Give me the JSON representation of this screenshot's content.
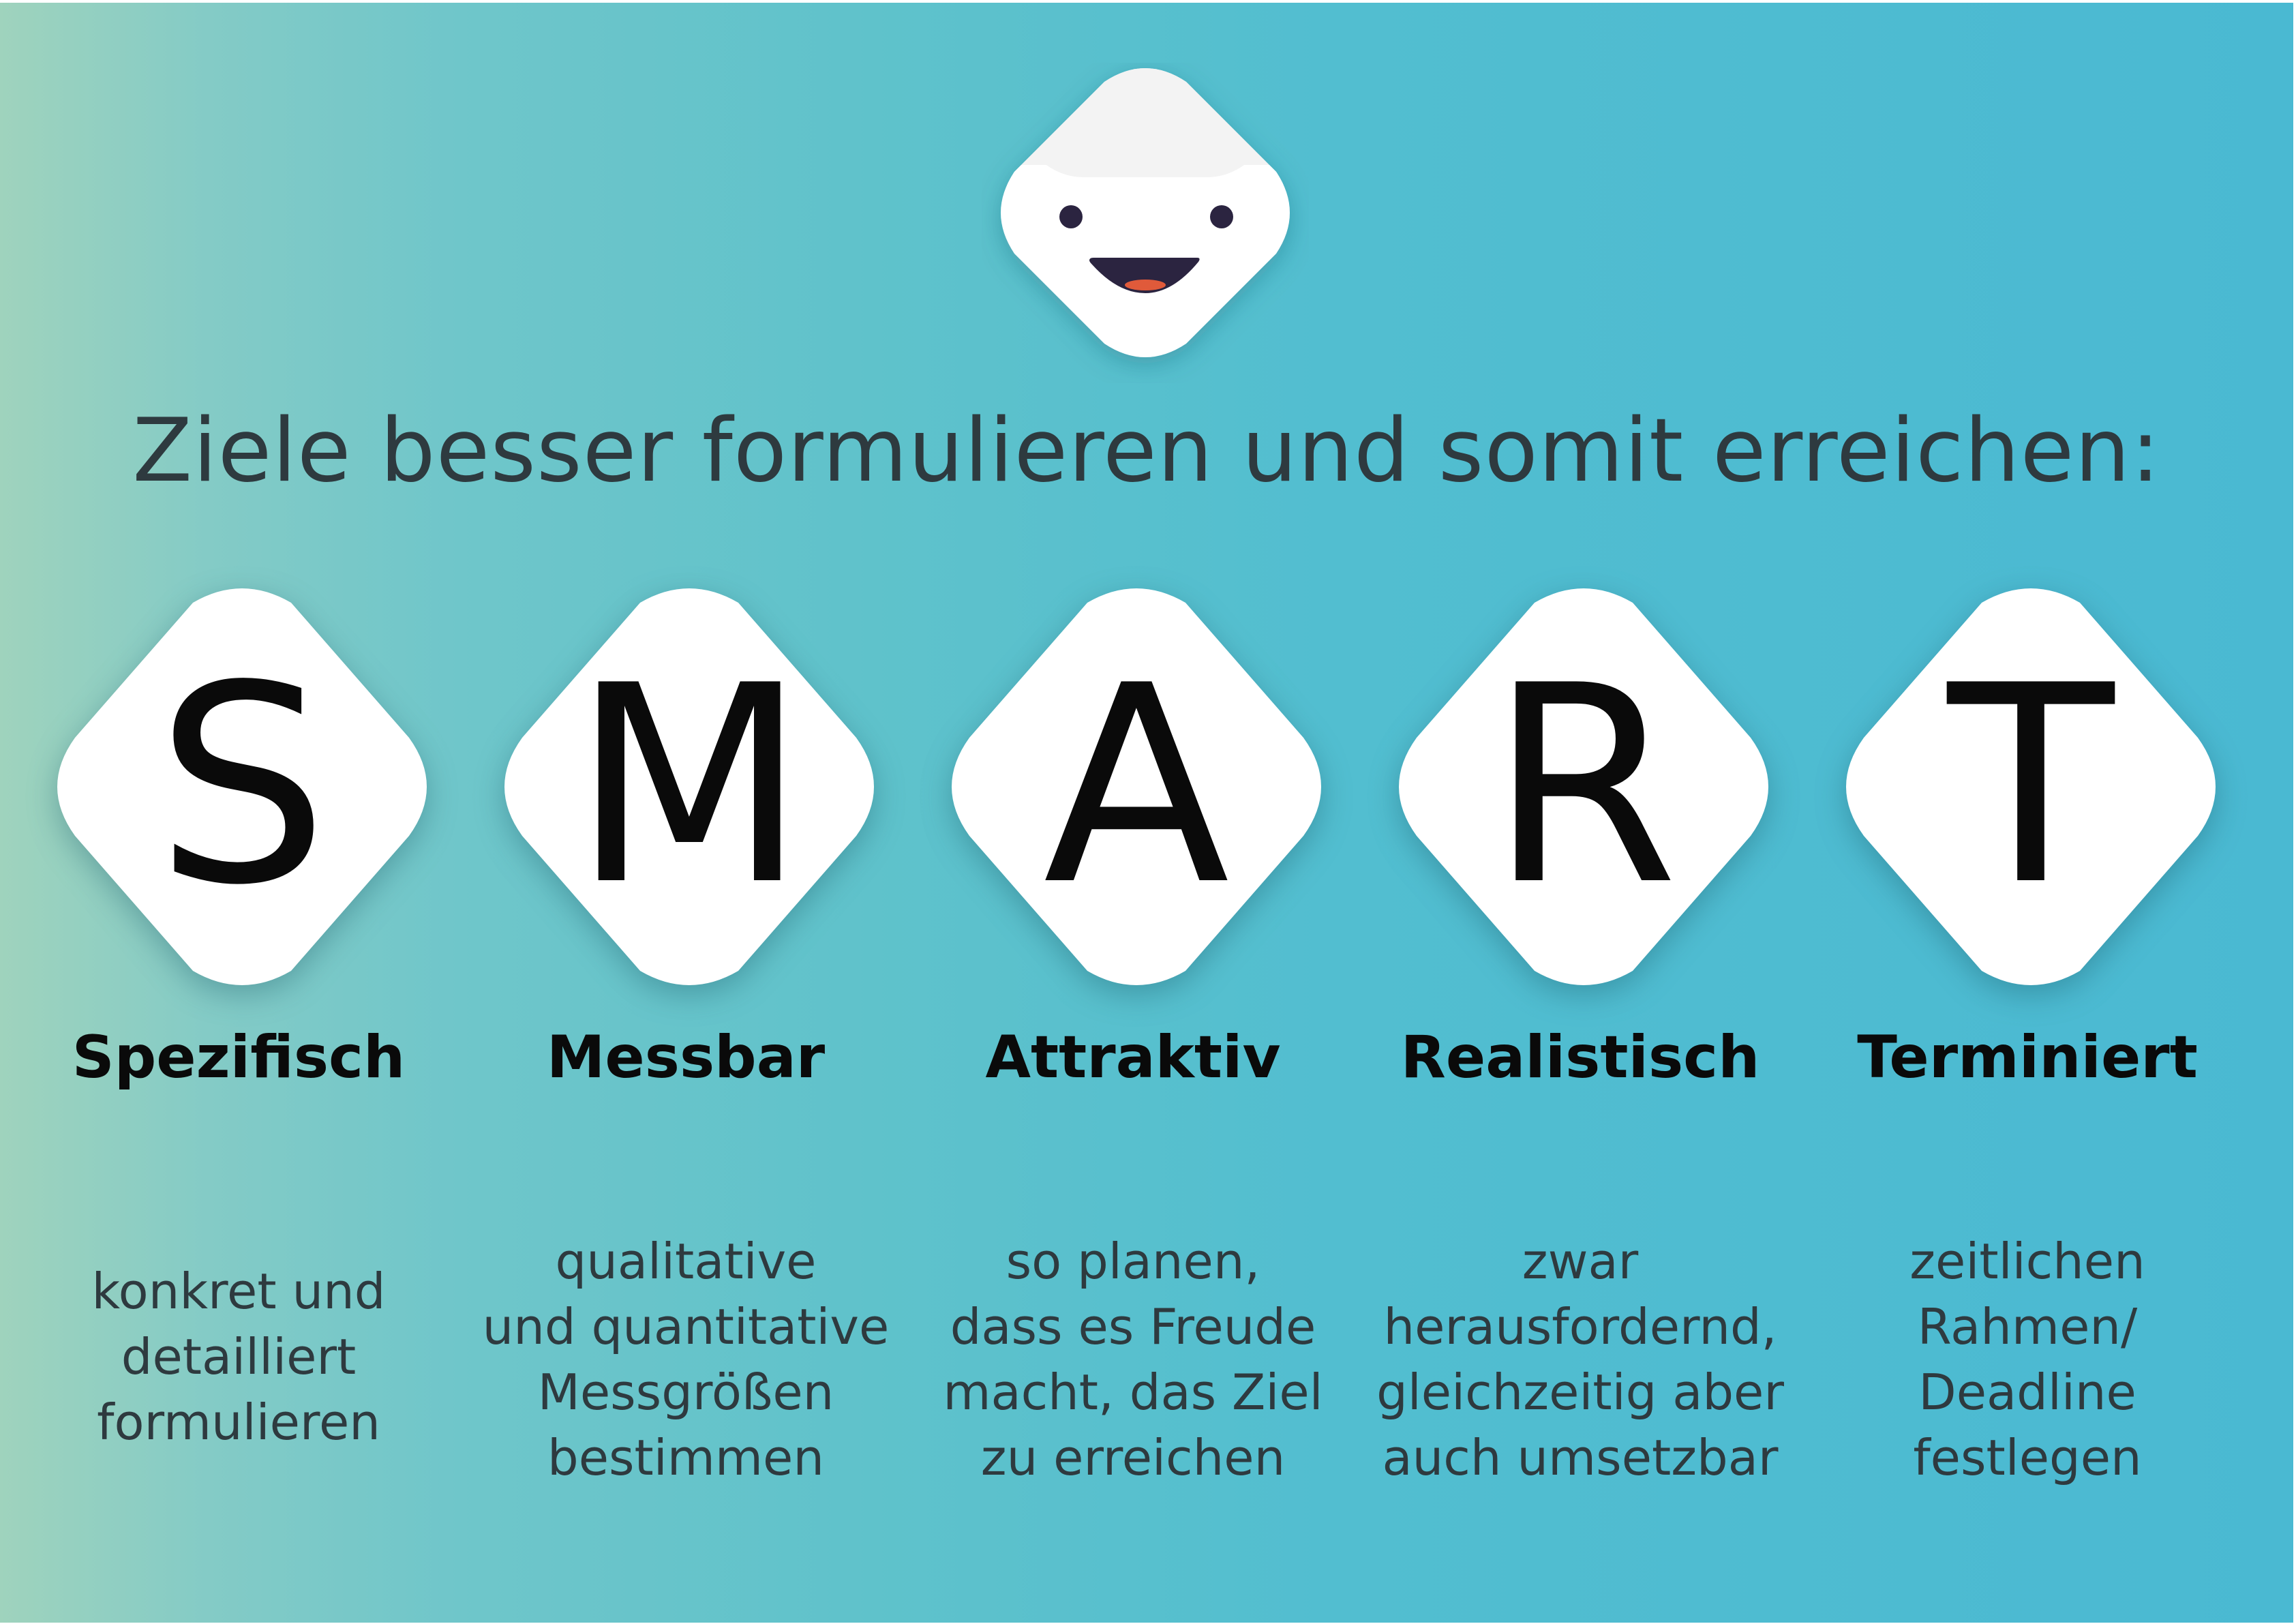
{
  "headline": "Ziele besser formulieren und somit erreichen:",
  "colors": {
    "gradient_start": "#9fd3bd",
    "gradient_end": "#4ab9d2",
    "tile": "#ffffff",
    "text_dark": "#2e3a3f",
    "letter": "#0a0a0a",
    "mascot_eye": "#2b2440",
    "mascot_mouth": "#2b2440",
    "mascot_tongue": "#e05a3a"
  },
  "mascot": {
    "icon": "smiling-face-mascot-icon"
  },
  "items": [
    {
      "letter": "S",
      "word": "Spezifisch",
      "description": [
        "konkret und",
        "detailliert",
        "formulieren"
      ]
    },
    {
      "letter": "M",
      "word": "Messbar",
      "description": [
        "qualitative",
        "und quantitative",
        "Messgrößen",
        "bestimmen"
      ]
    },
    {
      "letter": "A",
      "word": "Attraktiv",
      "description": [
        "so planen,",
        "dass es Freude",
        "macht, das Ziel",
        "zu erreichen"
      ]
    },
    {
      "letter": "R",
      "word": "Realistisch",
      "description": [
        "zwar",
        "herausfordernd,",
        "gleichzeitig aber",
        "auch umsetzbar"
      ]
    },
    {
      "letter": "T",
      "word": "Terminiert",
      "description": [
        "zeitlichen",
        "Rahmen/",
        "Deadline",
        "festlegen"
      ]
    }
  ]
}
